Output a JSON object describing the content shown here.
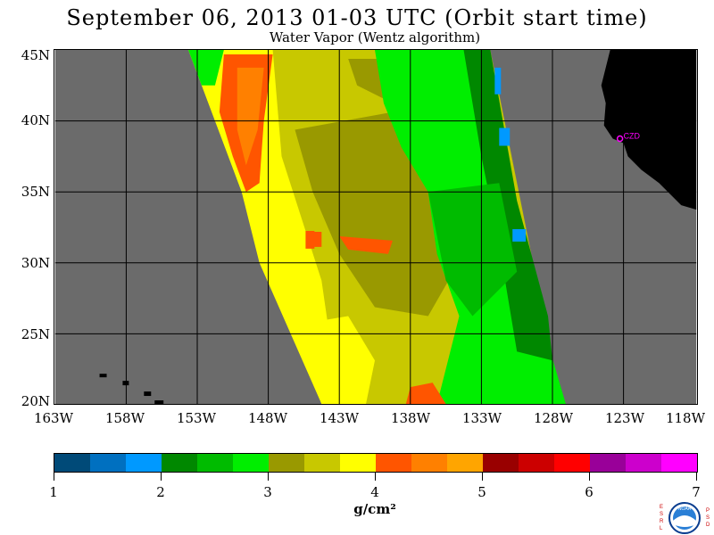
{
  "header": {
    "title": "September 06, 2013  01-03 UTC  (Orbit start time)",
    "subtitle": "Water Vapor (Wentz algorithm)"
  },
  "map": {
    "lat_labels": [
      "45N",
      "40N",
      "35N",
      "30N",
      "25N",
      "20N"
    ],
    "lon_labels": [
      "163W",
      "158W",
      "153W",
      "148W",
      "143W",
      "138W",
      "133W",
      "128W",
      "123W",
      "118W"
    ],
    "station_label": "CZD",
    "colors": {
      "no_data": "#6b6b6b",
      "land": "#000000",
      "grid": "#000000",
      "station": "#ff00ff"
    }
  },
  "colorbar": {
    "colors": [
      "#004a78",
      "#0070c0",
      "#0099ff",
      "#008800",
      "#00bb00",
      "#00ee00",
      "#999900",
      "#c8c800",
      "#ffff00",
      "#ff5500",
      "#ff8000",
      "#ffa500",
      "#990000",
      "#cc0000",
      "#ff0000",
      "#990099",
      "#cc00cc",
      "#ff00ff"
    ],
    "tick_labels": [
      "1",
      "2",
      "3",
      "4",
      "5",
      "6",
      "7"
    ],
    "units": "g/cm²"
  },
  "logo": {
    "left_letters": "ESRL",
    "right_letters": "PSD",
    "seal_text": "NOAA"
  }
}
